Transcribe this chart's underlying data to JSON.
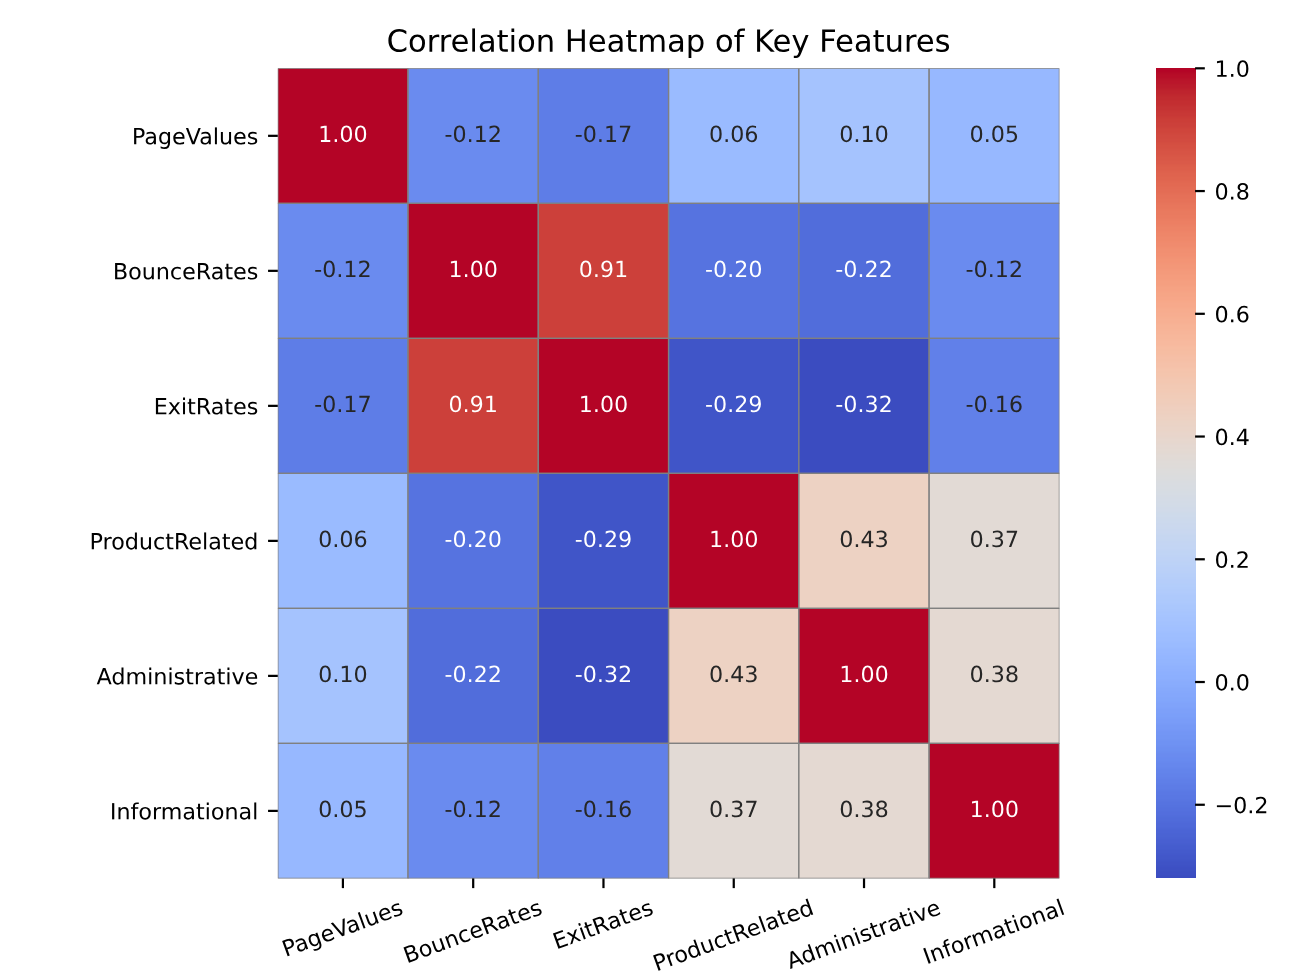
{
  "chart_data": {
    "type": "heatmap",
    "title": "Correlation Heatmap of Key Features",
    "categories": [
      "PageValues",
      "BounceRates",
      "ExitRates",
      "ProductRelated",
      "Administrative",
      "Informational"
    ],
    "y_categories": [
      "PageValues",
      "BounceRates",
      "ExitRates",
      "ProductRelated",
      "Administrative",
      "Informational"
    ],
    "cells": [
      [
        1.0,
        -0.12,
        -0.17,
        0.06,
        0.1,
        0.05
      ],
      [
        -0.12,
        1.0,
        0.91,
        -0.2,
        -0.22,
        -0.12
      ],
      [
        -0.17,
        0.91,
        1.0,
        -0.29,
        -0.32,
        -0.16
      ],
      [
        0.06,
        -0.2,
        -0.29,
        1.0,
        0.43,
        0.37
      ],
      [
        0.1,
        -0.22,
        -0.32,
        0.43,
        1.0,
        0.38
      ],
      [
        0.05,
        -0.12,
        -0.16,
        0.37,
        0.38,
        1.0
      ]
    ],
    "cell_labels": [
      [
        "1.00",
        "-0.12",
        "-0.17",
        "0.06",
        "0.10",
        "0.05"
      ],
      [
        "-0.12",
        "1.00",
        "0.91",
        "-0.20",
        "-0.22",
        "-0.12"
      ],
      [
        "-0.17",
        "0.91",
        "1.00",
        "-0.29",
        "-0.32",
        "-0.16"
      ],
      [
        "0.06",
        "-0.20",
        "-0.29",
        "1.00",
        "0.43",
        "0.37"
      ],
      [
        "0.10",
        "-0.22",
        "-0.32",
        "0.43",
        "1.00",
        "0.38"
      ],
      [
        "0.05",
        "-0.12",
        "-0.16",
        "0.37",
        "0.38",
        "1.00"
      ]
    ],
    "clim": [
      -0.32,
      1.0
    ],
    "cticks": [
      {
        "value": -0.2,
        "label": "−0.2"
      },
      {
        "value": 0,
        "label": "0.0"
      },
      {
        "value": 0.2,
        "label": "0.2"
      },
      {
        "value": 0.4,
        "label": "0.4"
      },
      {
        "value": 0.6,
        "label": "0.6"
      },
      {
        "value": 0.8,
        "label": "0.8"
      },
      {
        "value": 1.0,
        "label": "1.0"
      }
    ]
  }
}
